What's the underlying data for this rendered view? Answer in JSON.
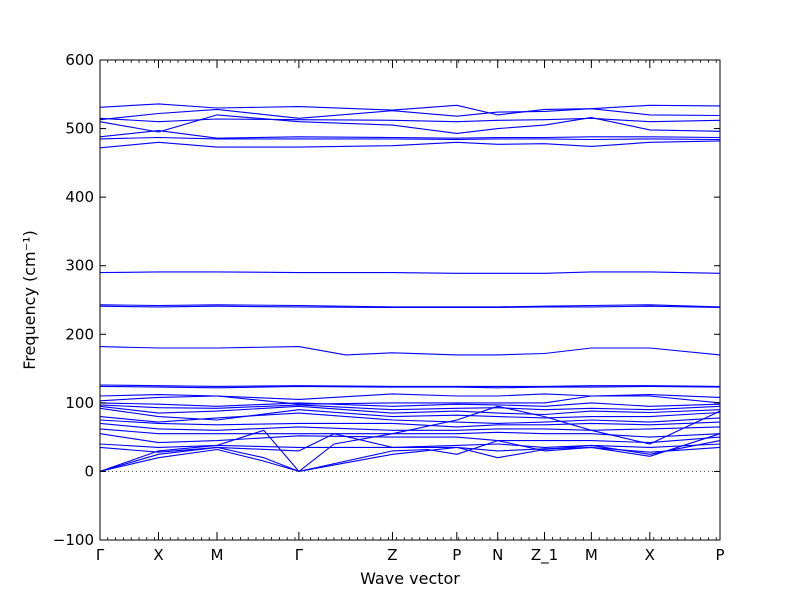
{
  "chart_data": {
    "type": "line",
    "title": "",
    "xlabel": "Wave vector",
    "ylabel": "Frequency (cm⁻¹)",
    "ylim": [
      -100,
      600
    ],
    "yticks": [
      -100,
      0,
      100,
      200,
      300,
      400,
      500,
      600
    ],
    "x_ticks": [
      {
        "label": "Γ",
        "pos": 0.0
      },
      {
        "label": "X",
        "pos": 0.5
      },
      {
        "label": "M",
        "pos": 1.0
      },
      {
        "label": "Γ",
        "pos": 1.7
      },
      {
        "label": "Z",
        "pos": 2.5
      },
      {
        "label": "P",
        "pos": 3.05
      },
      {
        "label": "N",
        "pos": 3.4
      },
      {
        "label": "Z_1",
        "pos": 3.8
      },
      {
        "label": "M",
        "pos": 4.2
      },
      {
        "label": "X",
        "pos": 4.7
      },
      {
        "label": "P",
        "pos": 5.3
      }
    ],
    "xlim": [
      0,
      5.3
    ],
    "zero_line": true,
    "grid": false,
    "series_color": "#0000ff",
    "series": [
      {
        "x": [
          0,
          0.5,
          1.0,
          1.7,
          2.5,
          3.05,
          3.4,
          3.8,
          4.2,
          4.7,
          5.3
        ],
        "y": [
          531,
          536,
          530,
          532,
          527,
          534,
          520,
          528,
          529,
          534,
          533
        ]
      },
      {
        "x": [
          0,
          0.5,
          1.0,
          1.7,
          2.5,
          3.05,
          3.4,
          3.8,
          4.2,
          4.7,
          5.3
        ],
        "y": [
          513,
          522,
          528,
          515,
          526,
          518,
          524,
          525,
          529,
          520,
          519
        ]
      },
      {
        "x": [
          0,
          0.5,
          1.0,
          1.7,
          2.5,
          3.05,
          3.4,
          3.8,
          4.2,
          4.7,
          5.3
        ],
        "y": [
          515,
          510,
          514,
          513,
          512,
          510,
          512,
          513,
          515,
          510,
          512
        ]
      },
      {
        "x": [
          0,
          0.5,
          1.0,
          1.7,
          2.5,
          3.05,
          3.4,
          3.8,
          4.2,
          4.7,
          5.3
        ],
        "y": [
          510,
          495,
          520,
          510,
          505,
          493,
          500,
          505,
          516,
          498,
          496
        ]
      },
      {
        "x": [
          0,
          0.5,
          1.0,
          1.7,
          2.5,
          3.05,
          3.4,
          3.8,
          4.2,
          4.7,
          5.3
        ],
        "y": [
          488,
          497,
          486,
          488,
          487,
          486,
          487,
          487,
          488,
          488,
          487
        ]
      },
      {
        "x": [
          0,
          0.5,
          1.0,
          1.7,
          2.5,
          3.05,
          3.4,
          3.8,
          4.2,
          4.7,
          5.3
        ],
        "y": [
          485,
          487,
          485,
          485,
          485,
          484,
          485,
          485,
          484,
          485,
          484
        ]
      },
      {
        "x": [
          0,
          0.5,
          1.0,
          1.7,
          2.5,
          3.05,
          3.4,
          3.8,
          4.2,
          4.7,
          5.3
        ],
        "y": [
          472,
          480,
          473,
          473,
          475,
          480,
          477,
          478,
          474,
          480,
          482
        ]
      },
      {
        "x": [
          0,
          0.5,
          1.0,
          1.7,
          2.5,
          3.05,
          3.4,
          3.8,
          4.2,
          4.7,
          5.3
        ],
        "y": [
          290,
          291,
          291,
          290,
          290,
          289,
          289,
          289,
          291,
          291,
          289
        ]
      },
      {
        "x": [
          0,
          0.5,
          1.0,
          1.7,
          2.5,
          3.05,
          3.4,
          3.8,
          4.2,
          4.7,
          5.3
        ],
        "y": [
          243,
          242,
          243,
          242,
          240,
          240,
          240,
          241,
          242,
          243,
          240
        ]
      },
      {
        "x": [
          0,
          0.5,
          1.0,
          1.7,
          2.5,
          3.05,
          3.4,
          3.8,
          4.2,
          4.7,
          5.3
        ],
        "y": [
          241,
          240,
          241,
          240,
          239,
          239,
          239,
          240,
          240,
          241,
          239
        ]
      },
      {
        "x": [
          0,
          0.5,
          1.0,
          1.7,
          2.1,
          2.5,
          3.05,
          3.4,
          3.8,
          4.2,
          4.7,
          5.3
        ],
        "y": [
          182,
          180,
          180,
          182,
          170,
          173,
          170,
          170,
          172,
          180,
          180,
          170
        ]
      },
      {
        "x": [
          0,
          0.5,
          1.0,
          1.7,
          2.5,
          3.05,
          3.4,
          3.8,
          4.2,
          4.7,
          5.3
        ],
        "y": [
          126,
          125,
          124,
          125,
          124,
          124,
          124,
          124,
          125,
          125,
          124
        ]
      },
      {
        "x": [
          0,
          0.5,
          1.0,
          1.7,
          2.5,
          3.05,
          3.4,
          3.8,
          4.2,
          4.7,
          5.3
        ],
        "y": [
          124,
          123,
          122,
          124,
          123,
          123,
          122,
          123,
          123,
          124,
          123
        ]
      },
      {
        "x": [
          0,
          0.5,
          1.0,
          1.7,
          2.5,
          3.05,
          3.4,
          3.8,
          4.2,
          4.7,
          5.3
        ],
        "y": [
          110,
          112,
          110,
          105,
          113,
          110,
          110,
          113,
          110,
          112,
          108
        ]
      },
      {
        "x": [
          0,
          0.5,
          1.0,
          1.7,
          2.5,
          3.05,
          3.4,
          3.8,
          4.2,
          4.7,
          5.3
        ],
        "y": [
          103,
          108,
          110,
          98,
          100,
          100,
          100,
          100,
          110,
          110,
          100
        ]
      },
      {
        "x": [
          0,
          0.5,
          1.0,
          1.7,
          2.5,
          3.05,
          3.4,
          3.8,
          4.2,
          4.7,
          5.3
        ],
        "y": [
          100,
          98,
          95,
          100,
          95,
          98,
          97,
          95,
          100,
          95,
          98
        ]
      },
      {
        "x": [
          0,
          0.5,
          1.0,
          1.7,
          2.5,
          3.05,
          3.4,
          3.8,
          4.2,
          4.7,
          5.3
        ],
        "y": [
          97,
          93,
          92,
          97,
          90,
          92,
          93,
          90,
          92,
          90,
          95
        ]
      },
      {
        "x": [
          0,
          0.5,
          1.0,
          1.7,
          2.5,
          3.05,
          3.4,
          3.8,
          4.2,
          4.7,
          5.3
        ],
        "y": [
          95,
          85,
          88,
          95,
          85,
          88,
          85,
          83,
          88,
          86,
          90
        ]
      },
      {
        "x": [
          0,
          0.5,
          1.0,
          1.7,
          2.5,
          3.05,
          3.4,
          3.8,
          4.2,
          4.7,
          5.3
        ],
        "y": [
          92,
          80,
          75,
          90,
          80,
          82,
          80,
          78,
          80,
          80,
          86
        ]
      },
      {
        "x": [
          0,
          0.5,
          1.0,
          1.7,
          2.5,
          3.05,
          3.4,
          3.8,
          4.2,
          4.7,
          5.3
        ],
        "y": [
          80,
          72,
          78,
          85,
          75,
          72,
          70,
          72,
          75,
          72,
          78
        ]
      },
      {
        "x": [
          0,
          0.5,
          1.0,
          1.7,
          2.5,
          3.05,
          3.4,
          3.8,
          4.2,
          4.7,
          5.3
        ],
        "y": [
          75,
          70,
          68,
          70,
          70,
          65,
          68,
          68,
          70,
          68,
          72
        ]
      },
      {
        "x": [
          0,
          0.5,
          1.0,
          1.7,
          2.5,
          3.05,
          3.4,
          3.8,
          4.2,
          4.7,
          5.3
        ],
        "y": [
          70,
          62,
          60,
          65,
          60,
          60,
          62,
          62,
          60,
          62,
          65
        ]
      },
      {
        "x": [
          0,
          0.5,
          1.0,
          1.7,
          2.5,
          3.05,
          3.4,
          3.8,
          4.2,
          4.7,
          5.3
        ],
        "y": [
          62,
          55,
          55,
          55,
          55,
          55,
          57,
          55,
          55,
          50,
          55
        ]
      },
      {
        "x": [
          0,
          0.5,
          1.0,
          1.7,
          2.5,
          3.05,
          3.4,
          3.8,
          4.2,
          4.7,
          5.3
        ],
        "y": [
          55,
          42,
          45,
          52,
          50,
          50,
          45,
          45,
          45,
          42,
          50
        ]
      },
      {
        "x": [
          0,
          0.5,
          1.0,
          1.7,
          2.5,
          3.05,
          3.4,
          3.8,
          4.2,
          4.7,
          5.3
        ],
        "y": [
          40,
          35,
          38,
          35,
          35,
          38,
          40,
          35,
          38,
          35,
          40
        ]
      },
      {
        "x": [
          0,
          0.5,
          1.0,
          1.7,
          2.0,
          2.5,
          3.05,
          3.4,
          3.8,
          4.2,
          4.7,
          5.3
        ],
        "y": [
          35,
          28,
          35,
          30,
          55,
          35,
          35,
          30,
          33,
          35,
          28,
          35
        ]
      },
      {
        "x": [
          0,
          0.5,
          1.0,
          1.4,
          1.7,
          2.5,
          2.8,
          3.05,
          3.4,
          3.8,
          4.2,
          4.7,
          5.3
        ],
        "y": [
          0,
          25,
          35,
          20,
          0,
          30,
          32,
          25,
          45,
          30,
          35,
          22,
          55
        ]
      },
      {
        "x": [
          0,
          0.5,
          1.0,
          1.4,
          1.7,
          2.5,
          3.05,
          3.4,
          3.8,
          4.2,
          4.7,
          5.3
        ],
        "y": [
          0,
          20,
          32,
          15,
          0,
          25,
          35,
          20,
          32,
          38,
          25,
          45
        ]
      },
      {
        "x": [
          0,
          0.5,
          1.0,
          1.4,
          1.7,
          2.0,
          2.5,
          3.05,
          3.4,
          3.8,
          4.2,
          4.7,
          5.3
        ],
        "y": [
          0,
          30,
          38,
          60,
          0,
          40,
          55,
          75,
          95,
          80,
          60,
          40,
          88
        ]
      }
    ]
  }
}
